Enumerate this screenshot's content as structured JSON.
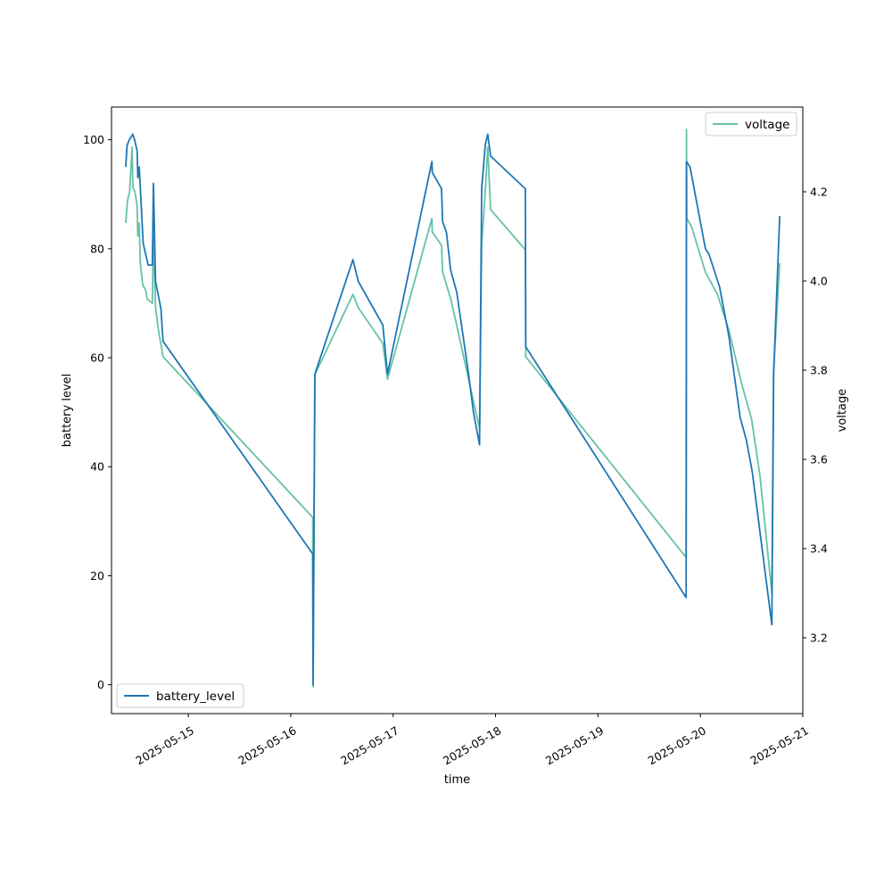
{
  "chart_data": {
    "type": "line",
    "xlabel": "time",
    "ylabel": "battery level",
    "y2label": "voltage",
    "x_ticks": [
      "2025-05-15",
      "2025-05-16",
      "2025-05-17",
      "2025-05-18",
      "2025-05-19",
      "2025-05-20",
      "2025-05-21"
    ],
    "xlim": [
      "2025-05-14 06:00",
      "2025-05-21 00:00"
    ],
    "ylim": [
      -5.3,
      106
    ],
    "y_ticks": [
      0,
      20,
      40,
      60,
      80,
      100
    ],
    "y2lim": [
      3.03,
      4.39
    ],
    "y2_ticks": [
      3.2,
      3.4,
      3.6,
      3.8,
      4.0,
      4.2
    ],
    "grid": false,
    "series": [
      {
        "name": "battery_level",
        "axis": "left",
        "color": "#1f77b4",
        "legend_position": "lower-left",
        "points": [
          [
            "2025-05-14 09:20",
            95
          ],
          [
            "2025-05-14 09:40",
            99
          ],
          [
            "2025-05-14 10:10",
            100
          ],
          [
            "2025-05-14 11:00",
            101
          ],
          [
            "2025-05-14 11:25",
            100
          ],
          [
            "2025-05-14 12:00",
            98
          ],
          [
            "2025-05-14 12:10",
            93
          ],
          [
            "2025-05-14 12:30",
            95
          ],
          [
            "2025-05-14 13:25",
            81
          ],
          [
            "2025-05-14 14:35",
            77
          ],
          [
            "2025-05-14 15:35",
            77
          ],
          [
            "2025-05-14 15:50",
            92
          ],
          [
            "2025-05-14 16:20",
            74
          ],
          [
            "2025-05-14 17:35",
            69
          ],
          [
            "2025-05-14 18:05",
            63
          ],
          [
            "2025-05-16 05:10",
            24
          ],
          [
            "2025-05-16 05:15",
            0
          ],
          [
            "2025-05-16 05:40",
            57
          ],
          [
            "2025-05-16 14:35",
            78
          ],
          [
            "2025-05-16 15:50",
            74
          ],
          [
            "2025-05-16 21:35",
            66
          ],
          [
            "2025-05-16 22:40",
            57
          ],
          [
            "2025-05-17 09:05",
            96
          ],
          [
            "2025-05-17 09:10",
            94
          ],
          [
            "2025-05-17 11:20",
            91
          ],
          [
            "2025-05-17 11:35",
            85
          ],
          [
            "2025-05-17 12:30",
            83
          ],
          [
            "2025-05-17 13:30",
            76
          ],
          [
            "2025-05-17 14:55",
            72
          ],
          [
            "2025-05-17 17:40",
            57
          ],
          [
            "2025-05-17 18:50",
            50
          ],
          [
            "2025-05-17 20:15",
            44
          ],
          [
            "2025-05-17 20:45",
            91
          ],
          [
            "2025-05-17 21:35",
            99
          ],
          [
            "2025-05-17 22:10",
            101
          ],
          [
            "2025-05-17 22:50",
            97
          ],
          [
            "2025-05-18 07:00",
            91
          ],
          [
            "2025-05-18 07:05",
            62
          ],
          [
            "2025-05-19 20:40",
            16
          ],
          [
            "2025-05-19 20:45",
            96
          ],
          [
            "2025-05-19 21:35",
            95
          ],
          [
            "2025-05-20 01:10",
            80
          ],
          [
            "2025-05-20 02:00",
            79
          ],
          [
            "2025-05-20 04:30",
            73
          ],
          [
            "2025-05-20 06:40",
            64
          ],
          [
            "2025-05-20 09:20",
            49
          ],
          [
            "2025-05-20 10:45",
            45
          ],
          [
            "2025-05-20 12:10",
            39
          ],
          [
            "2025-05-20 16:45",
            11
          ],
          [
            "2025-05-20 17:10",
            57
          ],
          [
            "2025-05-20 18:35",
            86
          ]
        ]
      },
      {
        "name": "voltage",
        "axis": "right",
        "color": "#66c2a5",
        "legend_position": "upper-right",
        "points": [
          [
            "2025-05-14 09:20",
            4.13
          ],
          [
            "2025-05-14 09:45",
            4.18
          ],
          [
            "2025-05-14 10:15",
            4.2
          ],
          [
            "2025-05-14 10:50",
            4.3
          ],
          [
            "2025-05-14 11:00",
            4.21
          ],
          [
            "2025-05-14 11:30",
            4.2
          ],
          [
            "2025-05-14 12:00",
            4.17
          ],
          [
            "2025-05-14 12:10",
            4.1
          ],
          [
            "2025-05-14 12:30",
            4.13
          ],
          [
            "2025-05-14 12:45",
            4.04
          ],
          [
            "2025-05-14 13:20",
            3.99
          ],
          [
            "2025-05-14 14:00",
            3.98
          ],
          [
            "2025-05-14 14:20",
            3.96
          ],
          [
            "2025-05-14 15:35",
            3.95
          ],
          [
            "2025-05-14 15:50",
            4.1
          ],
          [
            "2025-05-14 16:20",
            3.94
          ],
          [
            "2025-05-14 17:00",
            3.89
          ],
          [
            "2025-05-14 18:05",
            3.83
          ],
          [
            "2025-05-16 05:10",
            3.47
          ],
          [
            "2025-05-16 05:15",
            3.09
          ],
          [
            "2025-05-16 05:40",
            3.79
          ],
          [
            "2025-05-16 14:35",
            3.97
          ],
          [
            "2025-05-16 15:50",
            3.94
          ],
          [
            "2025-05-16 21:35",
            3.86
          ],
          [
            "2025-05-16 22:40",
            3.78
          ],
          [
            "2025-05-17 09:05",
            4.14
          ],
          [
            "2025-05-17 09:10",
            4.11
          ],
          [
            "2025-05-17 11:20",
            4.08
          ],
          [
            "2025-05-17 11:35",
            4.02
          ],
          [
            "2025-05-17 13:30",
            3.96
          ],
          [
            "2025-05-17 14:55",
            3.9
          ],
          [
            "2025-05-17 17:40",
            3.78
          ],
          [
            "2025-05-17 18:50",
            3.73
          ],
          [
            "2025-05-17 20:15",
            3.67
          ],
          [
            "2025-05-17 20:45",
            4.08
          ],
          [
            "2025-05-17 21:35",
            4.2
          ],
          [
            "2025-05-17 22:10",
            4.3
          ],
          [
            "2025-05-17 22:50",
            4.16
          ],
          [
            "2025-05-18 07:00",
            4.07
          ],
          [
            "2025-05-18 07:05",
            3.83
          ],
          [
            "2025-05-19 20:40",
            3.38
          ],
          [
            "2025-05-19 20:45",
            4.34
          ],
          [
            "2025-05-19 20:50",
            4.14
          ],
          [
            "2025-05-19 22:00",
            4.12
          ],
          [
            "2025-05-20 01:10",
            4.02
          ],
          [
            "2025-05-20 04:00",
            3.97
          ],
          [
            "2025-05-20 06:40",
            3.89
          ],
          [
            "2025-05-20 09:40",
            3.77
          ],
          [
            "2025-05-20 12:00",
            3.69
          ],
          [
            "2025-05-20 14:00",
            3.56
          ],
          [
            "2025-05-20 16:45",
            3.3
          ],
          [
            "2025-05-20 17:10",
            3.8
          ],
          [
            "2025-05-20 18:35",
            4.04
          ]
        ]
      }
    ]
  }
}
